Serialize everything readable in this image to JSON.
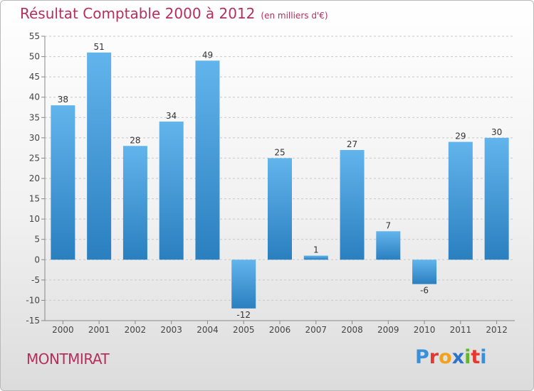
{
  "title": "Résultat Comptable 2000 à 2012",
  "subtitle": "(en milliers d'€)",
  "commune": "MONTMIRAT",
  "logo": {
    "letters": [
      "P",
      "r",
      "o",
      "x",
      "i",
      "t",
      "i"
    ],
    "colors": [
      "#3a8fd9",
      "#e5382f",
      "#f0a21c",
      "#2d73c7",
      "#67b42e",
      "#e5382f",
      "#3a8fd9"
    ]
  },
  "colors": {
    "bar_top": "#62b4ec",
    "bar_bottom": "#2a7fbf",
    "title": "#b52f5c"
  },
  "chart_data": {
    "type": "bar",
    "title": "Résultat Comptable 2000 à 2012",
    "subtitle": "(en milliers d'€)",
    "categories": [
      "2000",
      "2001",
      "2002",
      "2003",
      "2004",
      "2005",
      "2006",
      "2007",
      "2008",
      "2009",
      "2010",
      "2011",
      "2012"
    ],
    "values": [
      38,
      51,
      28,
      34,
      49,
      -12,
      25,
      1,
      27,
      7,
      -6,
      29,
      30
    ],
    "ylim": [
      -15,
      55
    ],
    "yticks": [
      -15,
      -10,
      -5,
      0,
      5,
      10,
      15,
      20,
      25,
      30,
      35,
      40,
      45,
      50,
      55
    ],
    "xlabel": "",
    "ylabel": "",
    "grid": true
  }
}
